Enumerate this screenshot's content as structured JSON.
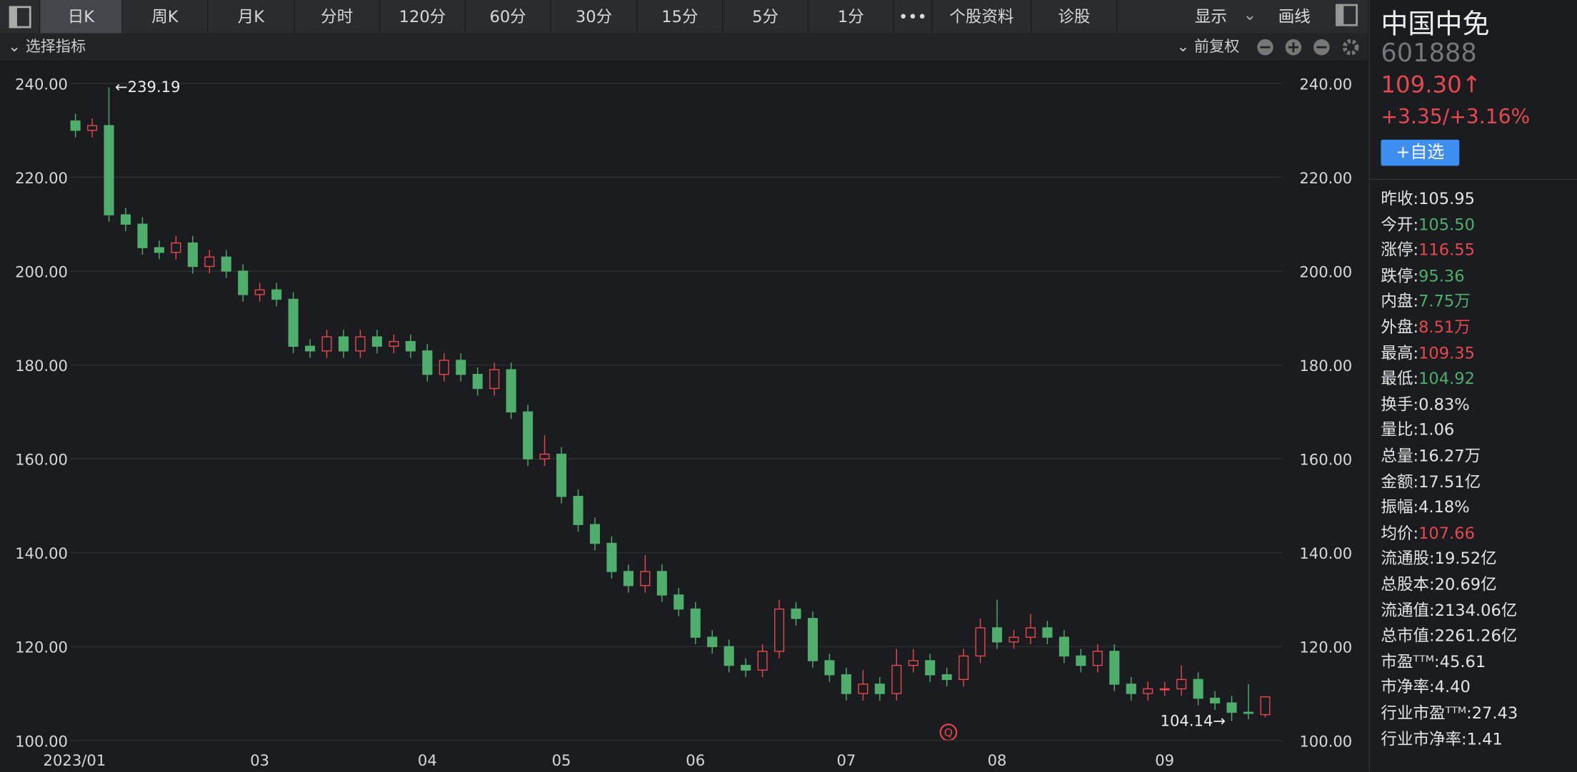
{
  "toolbar": {
    "tabs": [
      "日K",
      "周K",
      "月K",
      "分时",
      "120分",
      "60分",
      "30分",
      "15分",
      "5分",
      "1分"
    ],
    "more": "•••",
    "extra": [
      "个股资料",
      "诊股"
    ],
    "right": [
      "显示",
      "画线"
    ]
  },
  "indicator_bar": {
    "select": "选择指标",
    "adjust": "前复权"
  },
  "chart_data": {
    "type": "candlestick",
    "categories": [
      "2023/01",
      null,
      null,
      null,
      null,
      null,
      null,
      null,
      null,
      null,
      null,
      "03",
      null,
      null,
      null,
      null,
      null,
      null,
      null,
      null,
      null,
      "04",
      null,
      null,
      null,
      null,
      null,
      null,
      null,
      "05",
      null,
      null,
      null,
      null,
      null,
      null,
      null,
      "06",
      null,
      null,
      null,
      null,
      null,
      null,
      null,
      null,
      "07",
      null,
      null,
      null,
      null,
      null,
      null,
      null,
      null,
      "08",
      null,
      null,
      null,
      null,
      null,
      null,
      null,
      null,
      null,
      "09",
      null,
      null,
      null,
      null,
      null,
      null
    ],
    "open": [
      232,
      230,
      231,
      212,
      210,
      205,
      204,
      206,
      201,
      203,
      200,
      195,
      196,
      194,
      184,
      183,
      186,
      183,
      186,
      184,
      185,
      183,
      178,
      181,
      178,
      175,
      179,
      170,
      160,
      161,
      152,
      146,
      142,
      136,
      133,
      136,
      131,
      128,
      122,
      120,
      116,
      115,
      119,
      128,
      126,
      117,
      114,
      110,
      112,
      110,
      116,
      117,
      114,
      113,
      118,
      124,
      121,
      122,
      124,
      122,
      118,
      116,
      119,
      112,
      110,
      111,
      111,
      113,
      109,
      108,
      106,
      105.5
    ],
    "close": [
      230,
      231,
      212,
      210,
      205,
      204,
      206,
      201,
      203,
      200,
      195,
      196,
      194,
      184,
      183,
      186,
      183,
      186,
      184,
      185,
      183,
      178,
      181,
      178,
      175,
      179,
      170,
      160,
      161,
      152,
      146,
      142,
      136,
      133,
      136,
      131,
      128,
      122,
      120,
      116,
      115,
      119,
      128,
      126,
      117,
      114,
      110,
      112,
      110,
      116,
      117,
      114,
      113,
      118,
      124,
      121,
      122,
      124,
      122,
      118,
      116,
      119,
      112,
      110,
      111,
      111,
      113,
      109,
      108,
      106,
      105.95,
      109.3
    ],
    "high": [
      233.5,
      232.5,
      239.19,
      213.5,
      211.5,
      206.5,
      207.5,
      207.5,
      204.5,
      204.5,
      201.5,
      197.5,
      197.5,
      195.5,
      185.5,
      187.5,
      187.5,
      187.5,
      187.5,
      186.5,
      186.5,
      184.5,
      182.5,
      182.5,
      179.5,
      180.5,
      180.5,
      171.5,
      165,
      162.5,
      153.5,
      147.5,
      143.5,
      137.5,
      139.5,
      137.5,
      132.5,
      129.5,
      123.5,
      121.5,
      117.5,
      120.5,
      130,
      129.5,
      127.5,
      118.5,
      115.5,
      115,
      113.5,
      119.5,
      119.5,
      118.5,
      115.5,
      119.5,
      126,
      130,
      123.5,
      127,
      125.5,
      123.5,
      119.5,
      120.5,
      120.5,
      113.5,
      112.5,
      112.5,
      116,
      114.5,
      110.5,
      109.5,
      112,
      109.35
    ],
    "low": [
      228.5,
      228.5,
      210.5,
      208.5,
      203.5,
      202.5,
      202.5,
      199.5,
      199.5,
      198.5,
      193.5,
      193.5,
      192.5,
      182.5,
      181.5,
      181.5,
      181.5,
      181.5,
      182.5,
      182.5,
      181.5,
      176.5,
      176.5,
      176.5,
      173.5,
      173.5,
      168.5,
      158.5,
      158.5,
      150.5,
      144.5,
      140.5,
      134.5,
      131.5,
      131.5,
      129.5,
      126.5,
      120.5,
      118.5,
      114.5,
      113.5,
      113.5,
      117.5,
      124.5,
      115.5,
      112.5,
      108.5,
      108.5,
      108.5,
      108.5,
      114.5,
      112.5,
      111.5,
      111.5,
      116.5,
      119.5,
      119.5,
      120.5,
      120.5,
      116.5,
      114.5,
      114.5,
      110.5,
      108.5,
      108.5,
      109.5,
      109.5,
      107.5,
      106.5,
      104.14,
      104.5,
      104.92
    ],
    "up_color": "#e5484d",
    "down_color": "#4fae6b",
    "ylim": [
      100,
      240
    ],
    "yticks": [
      {
        "value": 100,
        "label": "100.00"
      },
      {
        "value": 120,
        "label": "120.00"
      },
      {
        "value": 140,
        "label": "140.00"
      },
      {
        "value": 160,
        "label": "160.00"
      },
      {
        "value": 180,
        "label": "180.00"
      },
      {
        "value": 200,
        "label": "200.00"
      },
      {
        "value": 220,
        "label": "220.00"
      },
      {
        "value": 240,
        "label": "240.00"
      }
    ],
    "grid": true,
    "annotations": [
      {
        "label": "←239.19",
        "value": 239.19,
        "index": 2,
        "side": "right"
      },
      {
        "label": "104.14→",
        "value": 104.14,
        "index": 69,
        "side": "left"
      }
    ]
  },
  "quote": {
    "name": "中国中免",
    "code": "601888",
    "price": "109.30↑",
    "change": "+3.35/+3.16%",
    "add": "+自选",
    "stats": [
      {
        "label": "昨收:",
        "value": "105.95",
        "tone": "flat"
      },
      {
        "label": "今开:",
        "value": "105.50",
        "tone": "down"
      },
      {
        "label": "涨停:",
        "value": "116.55",
        "tone": "up"
      },
      {
        "label": "跌停:",
        "value": "95.36",
        "tone": "down"
      },
      {
        "label": "内盘:",
        "value": "7.75万",
        "tone": "down"
      },
      {
        "label": "外盘:",
        "value": "8.51万",
        "tone": "up"
      },
      {
        "label": "最高:",
        "value": "109.35",
        "tone": "up"
      },
      {
        "label": "最低:",
        "value": "104.92",
        "tone": "down"
      },
      {
        "label": "换手:",
        "value": "0.83%",
        "tone": "flat"
      },
      {
        "label": "量比:",
        "value": "1.06",
        "tone": "flat"
      },
      {
        "label": "总量:",
        "value": "16.27万",
        "tone": "flat"
      },
      {
        "label": "金额:",
        "value": "17.51亿",
        "tone": "flat"
      },
      {
        "label": "振幅:",
        "value": "4.18%",
        "tone": "flat"
      },
      {
        "label": "均价:",
        "value": "107.66",
        "tone": "up"
      },
      {
        "label": "流通股:",
        "value": "19.52亿",
        "tone": "flat"
      },
      {
        "label": "总股本:",
        "value": "20.69亿",
        "tone": "flat"
      },
      {
        "label": "流通值:",
        "value": "2134.06亿",
        "tone": "flat"
      },
      {
        "label": "总市值:",
        "value": "2261.26亿",
        "tone": "flat"
      },
      {
        "label": "市盈ᵀᵀᴹ:",
        "value": "45.61",
        "tone": "flat"
      },
      {
        "label": "市净率:",
        "value": "4.40",
        "tone": "flat"
      },
      {
        "label": "行业市盈ᵀᵀᴹ:",
        "value": "27.43",
        "tone": "flat"
      },
      {
        "label": "行业市净率:",
        "value": "1.41",
        "tone": "flat"
      }
    ]
  }
}
